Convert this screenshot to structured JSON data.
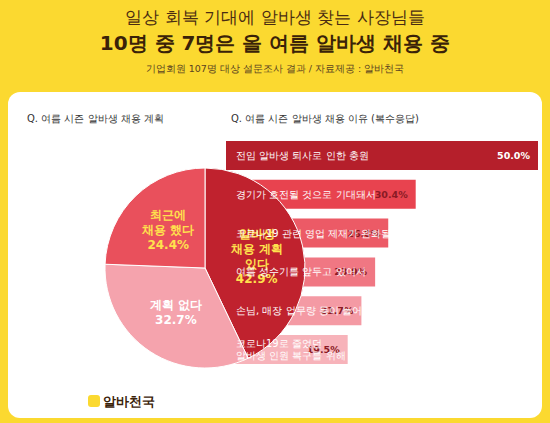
{
  "header": {
    "title": "일상 회복 기대에 알바생 찾는 사장님들",
    "subtitle": "10명 중 7명은 올 여름 알바생 채용 중",
    "source": "기업회원 107명 대상 설문조사 결과 / 자료제공 : 알바천국"
  },
  "logo": "알바천국",
  "chart_data": [
    {
      "type": "pie",
      "title": "Q. 여름 시즌 알바생 채용 계획",
      "categories": [
        "알바생\n채용 계획\n있다",
        "계획 없다",
        "최근에\n채용 했다"
      ],
      "values": [
        42.9,
        32.7,
        24.4
      ],
      "value_labels": [
        "42.9%",
        "32.7%",
        "24.4%"
      ],
      "colors": [
        "#c0222e",
        "#f5a3ad",
        "#e9505c"
      ],
      "data_labels": true
    },
    {
      "type": "bar",
      "title": "Q. 여름 시즌 알바생 채용 이유 (복수응답)",
      "orientation": "horizontal",
      "categories": [
        "전임 알바생 퇴사로 인한 충원",
        "경기가 호전될 것으로 기대돼서",
        "코로나19 관련 영업 제재가 완화될 것 같아서",
        "여름 성수기를 앞두고 있어서",
        "손님, 매장 업무량 등이 늘어나서",
        "코로나19로 줄었던\n알바생 인원 복구를 위해"
      ],
      "values": [
        50.0,
        30.4,
        26.0,
        23.9,
        21.7,
        19.5
      ],
      "value_labels": [
        "50.0%",
        "30.4%",
        "26.0%",
        "23.9%",
        "21.7%",
        "19.5%"
      ],
      "colors": [
        "#b51f2b",
        "#e8434f",
        "#ec5a66",
        "#f07783",
        "#f49aa4",
        "#f7b3ba"
      ],
      "xlim": [
        0,
        50
      ],
      "data_labels": true,
      "tick_labels": "y",
      "grid": false
    }
  ]
}
